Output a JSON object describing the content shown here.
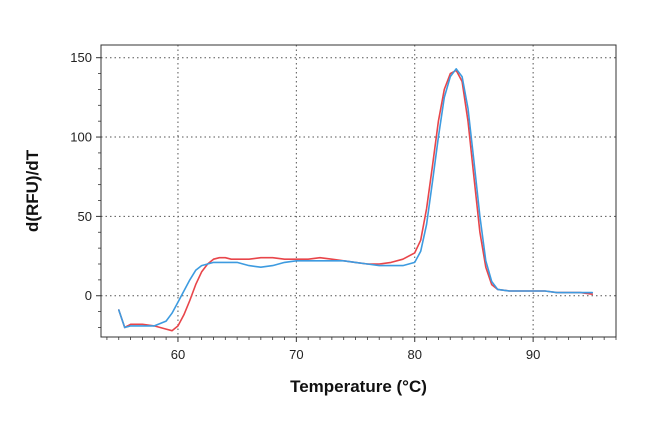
{
  "chart_data": {
    "type": "line",
    "title": "",
    "xlabel": "Temperature (°C)",
    "ylabel": "d(RFU)/dT",
    "xlim": [
      53.5,
      97
    ],
    "ylim": [
      -26,
      158
    ],
    "xticks": [
      60,
      70,
      80,
      90
    ],
    "yticks": [
      0,
      50,
      100,
      150
    ],
    "xtick_labels": [
      "60",
      "70",
      "80",
      "90"
    ],
    "ytick_labels": [
      "0",
      "50",
      "100",
      "150"
    ],
    "grid": true,
    "legend": "none",
    "series": [
      {
        "color": "#e8454a",
        "x": [
          55,
          55.5,
          56,
          57,
          58,
          59,
          59.5,
          60,
          60.5,
          61,
          61.5,
          62,
          62.5,
          63,
          63.5,
          64,
          64.5,
          65,
          66,
          67,
          68,
          69,
          70,
          71,
          72,
          73,
          74,
          75,
          76,
          77,
          78,
          79,
          80,
          80.5,
          81,
          81.5,
          82,
          82.5,
          83,
          83.5,
          84,
          84.5,
          85,
          85.5,
          86,
          86.5,
          87,
          88,
          89,
          90,
          91,
          92,
          93,
          94,
          95
        ],
        "y": [
          -9,
          -20,
          -18,
          -18,
          -19,
          -21,
          -22,
          -19,
          -12,
          -3,
          7,
          15,
          20,
          23,
          24,
          24,
          23,
          23,
          23,
          24,
          24,
          23,
          23,
          23,
          24,
          23,
          22,
          21,
          20,
          20,
          21,
          23,
          27,
          35,
          55,
          82,
          110,
          130,
          140,
          142,
          135,
          110,
          75,
          40,
          18,
          7,
          4,
          3,
          3,
          3,
          3,
          2,
          2,
          2,
          1
        ]
      },
      {
        "color": "#3d9be0",
        "x": [
          55,
          55.5,
          56,
          57,
          58,
          59,
          59.5,
          60,
          60.5,
          61,
          61.5,
          62,
          62.5,
          63,
          64,
          65,
          66,
          67,
          68,
          69,
          70,
          71,
          72,
          73,
          74,
          75,
          76,
          77,
          78,
          79,
          80,
          80.5,
          81,
          81.5,
          82,
          82.5,
          83,
          83.5,
          84,
          84.5,
          85,
          85.5,
          86,
          86.5,
          87,
          88,
          89,
          90,
          91,
          92,
          93,
          94,
          95
        ],
        "y": [
          -9,
          -20,
          -19,
          -19,
          -19,
          -16,
          -11,
          -4,
          3,
          10,
          16,
          19,
          20,
          21,
          21,
          21,
          19,
          18,
          19,
          21,
          22,
          22,
          22,
          22,
          22,
          21,
          20,
          19,
          19,
          19,
          21,
          28,
          45,
          72,
          100,
          125,
          138,
          143,
          138,
          118,
          85,
          50,
          22,
          9,
          4,
          3,
          3,
          3,
          3,
          2,
          2,
          2,
          2
        ]
      }
    ]
  }
}
